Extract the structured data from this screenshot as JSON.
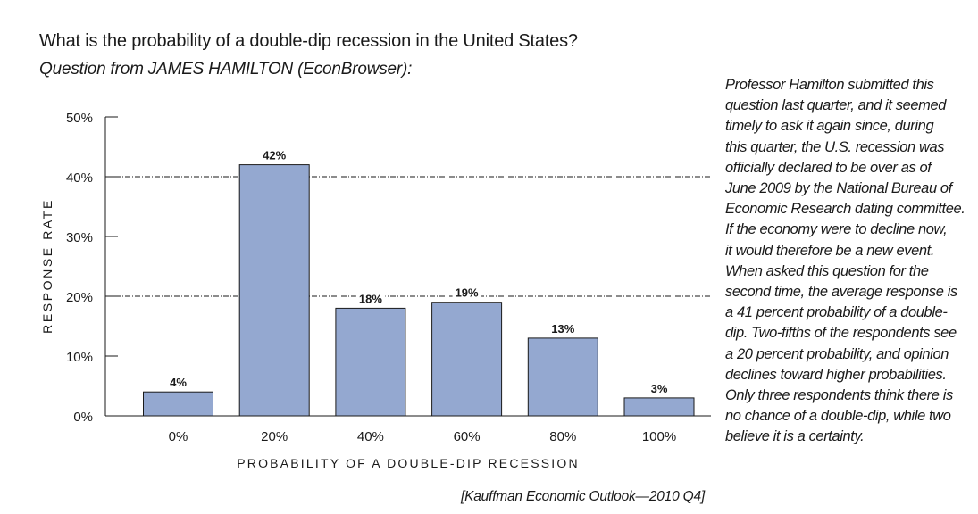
{
  "title": "What is the probability of a double-dip recession in the United States?",
  "subtitle": "Question from JAMES HAMILTON (EconBrowser):",
  "side_note_lines": [
    "Professor Hamilton submitted this",
    "question last quarter, and it seemed",
    "timely to ask it again since, during",
    "this quarter, the U.S. recession was",
    "officially declared to be over as of",
    "June 2009 by the National Bureau of",
    "Economic Research dating committee.",
    "If the economy were to decline now,",
    "it would therefore be a new event.",
    "When asked this question for the",
    "second time, the average response is",
    "a 41 percent probability of a double-",
    "dip. Two-fifths of the respondents see",
    "a 20 percent probability, and opinion",
    "declines toward higher probabilities.",
    "Only three respondents think there is",
    "no chance of a double-dip, while two",
    "believe it is a certainty."
  ],
  "source": "[Kauffman Economic Outlook—2010 Q4]",
  "colors": {
    "bar_fill": "#94a8d0",
    "bar_stroke": "#1a1a1a",
    "text": "#1a1a1a"
  },
  "chart_data": {
    "type": "bar",
    "categories": [
      "0%",
      "20%",
      "40%",
      "60%",
      "80%",
      "100%"
    ],
    "values": [
      4,
      42,
      18,
      19,
      13,
      3
    ],
    "data_labels": [
      "4%",
      "42%",
      "18%",
      "19%",
      "13%",
      "3%"
    ],
    "xlabel": "PROBABILITY OF A DOUBLE-DIP RECESSION",
    "ylabel": "RESPONSE RATE",
    "ylim": [
      0,
      50
    ],
    "y_ticks": [
      0,
      10,
      20,
      30,
      40,
      50
    ],
    "y_tick_labels": [
      "0%",
      "10%",
      "20%",
      "30%",
      "40%",
      "50%"
    ],
    "reference_lines": [
      20,
      40
    ],
    "grid": false
  }
}
